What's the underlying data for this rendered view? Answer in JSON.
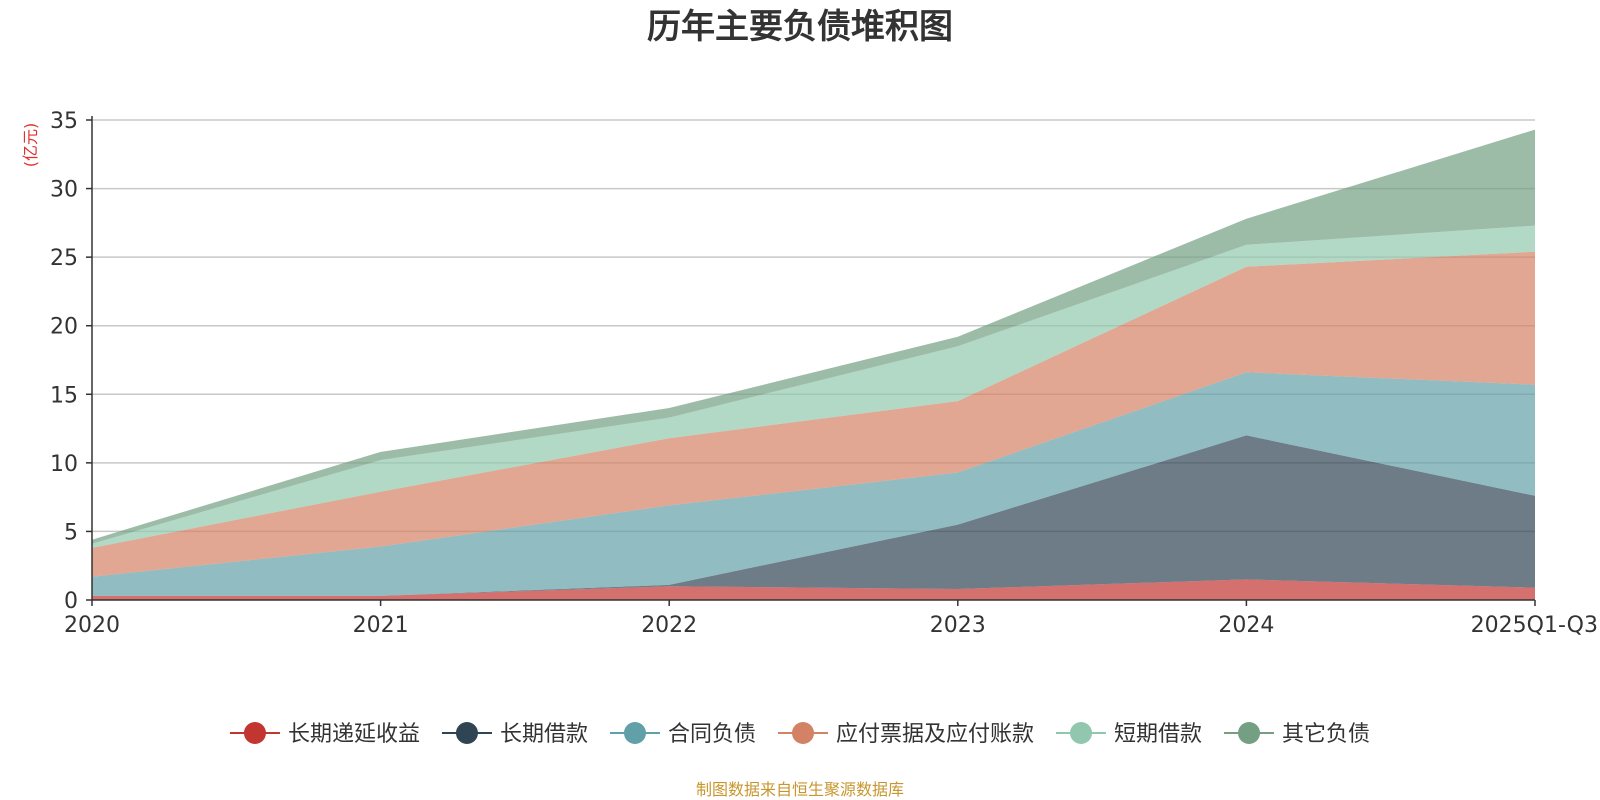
{
  "chart_data": {
    "type": "area",
    "stacked": true,
    "title": "历年主要负债堆积图",
    "unit_label": "(亿元)",
    "categories": [
      "2020",
      "2021",
      "2022",
      "2023",
      "2024",
      "2025Q1-Q3"
    ],
    "ylim": [
      0,
      35
    ],
    "yticks": [
      0,
      5,
      10,
      15,
      20,
      25,
      30,
      35
    ],
    "grid": true,
    "legend_position": "bottom",
    "series": [
      {
        "name": "长期递延收益",
        "color": "#c23531",
        "values": [
          0.3,
          0.3,
          1.0,
          0.8,
          1.5,
          0.9
        ]
      },
      {
        "name": "长期借款",
        "color": "#2f4554",
        "values": [
          0.0,
          0.0,
          0.1,
          4.7,
          10.5,
          6.7
        ]
      },
      {
        "name": "合同负债",
        "color": "#61a0a8",
        "values": [
          1.4,
          3.6,
          5.8,
          3.8,
          4.6,
          8.1
        ]
      },
      {
        "name": "应付票据及应付账款",
        "color": "#d48265",
        "values": [
          2.1,
          4.0,
          4.9,
          5.2,
          7.7,
          9.7
        ]
      },
      {
        "name": "短期借款",
        "color": "#91c7ae",
        "values": [
          0.3,
          2.3,
          1.5,
          4.0,
          1.6,
          1.9
        ]
      },
      {
        "name": "其它负债",
        "color": "#749f83",
        "values": [
          0.3,
          0.6,
          0.7,
          0.7,
          1.9,
          7.0
        ]
      }
    ]
  },
  "footer": {
    "source": "制图数据来自恒生聚源数据库"
  }
}
